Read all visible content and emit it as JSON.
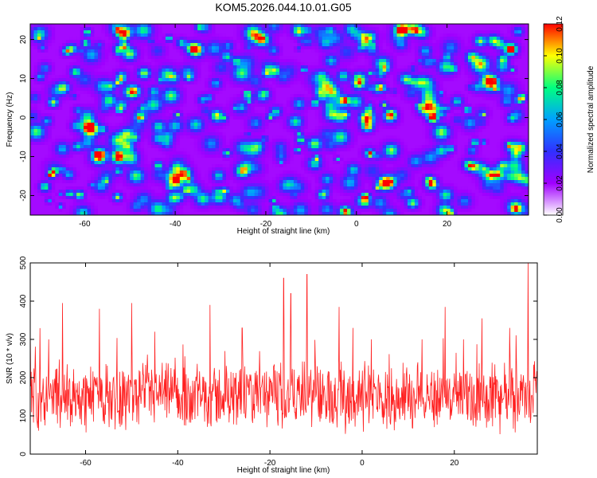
{
  "title": "KOM5.2026.044.10.01.G05",
  "chart_data": [
    {
      "type": "heatmap",
      "xlabel": "Height of straight line (km)",
      "ylabel": "Frequency (Hz)",
      "xlim": [
        -72,
        38
      ],
      "ylim": [
        -25,
        24
      ],
      "x_ticks": [
        -60,
        -40,
        -20,
        0,
        20
      ],
      "y_ticks": [
        -20,
        -10,
        0,
        10,
        20
      ],
      "grid": false,
      "colorbar": {
        "label": "Normalized spectral amplitude",
        "range": [
          0.0,
          0.12
        ],
        "ticks": [
          "0.00",
          "0.02",
          "0.04",
          "0.06",
          "0.08",
          "0.10",
          "0.12"
        ],
        "colormap": [
          "#ffffff",
          "#a000ff",
          "#3030ff",
          "#00a0ff",
          "#00ff80",
          "#ffff00",
          "#ff0000"
        ]
      }
    },
    {
      "type": "line",
      "xlabel": "Height of straight line (km)",
      "ylabel": "SNR (10 * v/v)",
      "xlim": [
        -72,
        38
      ],
      "ylim": [
        0,
        500
      ],
      "x_ticks": [
        -60,
        -40,
        -20,
        0,
        20
      ],
      "y_ticks": [
        0,
        100,
        200,
        300,
        400,
        500
      ],
      "line_color": "#ff2020",
      "series": [
        {
          "name": "SNR",
          "baseline": 150,
          "noise_amplitude": 80,
          "peaks": [
            {
              "x": -72,
              "y": 330
            },
            {
              "x": -68,
              "y": 300
            },
            {
              "x": -65,
              "y": 395
            },
            {
              "x": -57,
              "y": 380
            },
            {
              "x": -50,
              "y": 395
            },
            {
              "x": -45,
              "y": 320
            },
            {
              "x": -33,
              "y": 390
            },
            {
              "x": -26,
              "y": 330
            },
            {
              "x": -17,
              "y": 460
            },
            {
              "x": -15.5,
              "y": 420
            },
            {
              "x": -12,
              "y": 470
            },
            {
              "x": -5,
              "y": 385
            },
            {
              "x": -2,
              "y": 330
            },
            {
              "x": 2,
              "y": 300
            },
            {
              "x": 13,
              "y": 300
            },
            {
              "x": 18,
              "y": 385
            },
            {
              "x": 22,
              "y": 300
            },
            {
              "x": 26,
              "y": 355
            },
            {
              "x": 32,
              "y": 330
            },
            {
              "x": 36,
              "y": 500
            }
          ]
        }
      ]
    }
  ]
}
